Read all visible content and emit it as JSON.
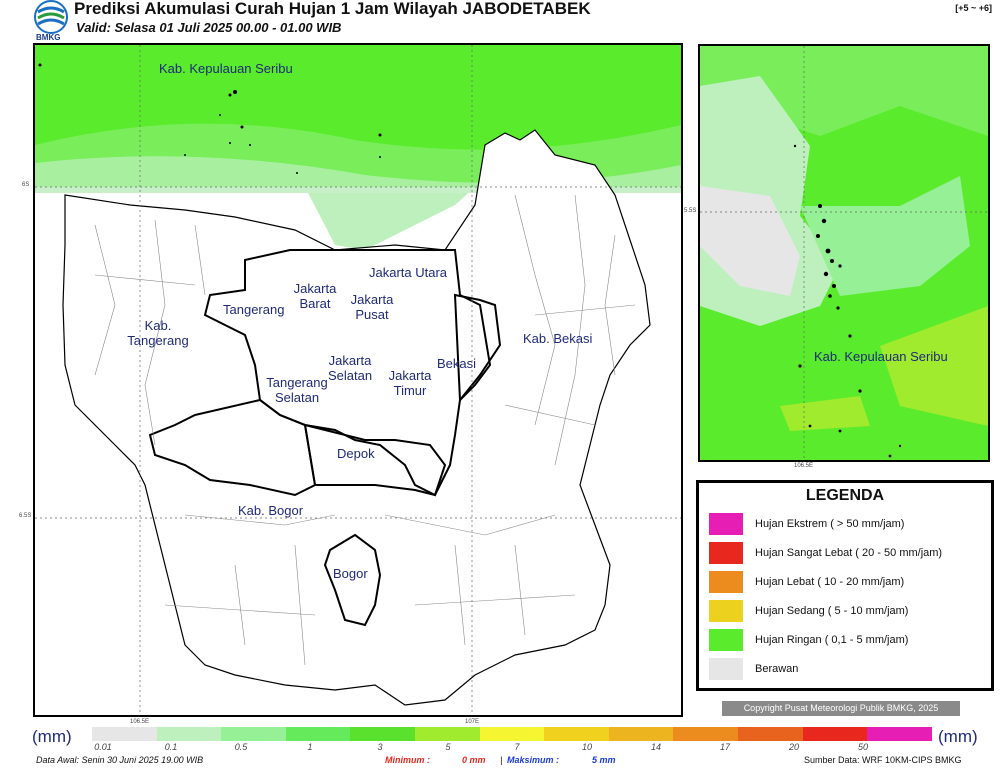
{
  "header": {
    "title": "Prediksi Akumulasi Curah Hujan 1 Jam Wilayah JABODETABEK",
    "valid": "Valid: Selasa 01 Juli 2025 00.00 - 01.00 WIB",
    "forecast_range": "[+5 ~ +6]",
    "logo_text": "BMKG"
  },
  "map": {
    "regions": [
      "Kab. Kepulauan Seribu",
      "Jakarta Utara",
      "Jakarta Barat",
      "Jakarta Pusat",
      "Tangerang",
      "Kab. Tangerang",
      "Kab. Bekasi",
      "Jakarta Selatan",
      "Jakarta Timur",
      "Bekasi",
      "Tangerang Selatan",
      "Depok",
      "Kab. Bogor",
      "Bogor"
    ],
    "lat_labels": [
      "6S",
      "6.5S"
    ],
    "lon_labels": [
      "106.5E",
      "107E"
    ],
    "inset_region": "Kab. Kepulauan Seribu",
    "inset_lat": "5.5S",
    "inset_lon": "106.5E"
  },
  "legend": {
    "title": "LEGENDA",
    "items": [
      {
        "label": "Hujan Ekstrem ( > 50 mm/jam)",
        "color": "#e61eb4"
      },
      {
        "label": "Hujan Sangat Lebat ( 20 - 50 mm/jam)",
        "color": "#e8281e"
      },
      {
        "label": "Hujan Lebat ( 10 - 20 mm/jam)",
        "color": "#ec8c1e"
      },
      {
        "label": "Hujan Sedang ( 5 - 10 mm/jam)",
        "color": "#ecd21e"
      },
      {
        "label": "Hujan Ringan ( 0,1 - 5 mm/jam)",
        "color": "#5aeb2d"
      },
      {
        "label": "Berawan",
        "color": "#e6e6e6"
      }
    ]
  },
  "copyright": "Copyright Pusat Meteorologi Publik BMKG, 2025",
  "scale": {
    "unit": "(mm)",
    "ticks": [
      "0.01",
      "0.1",
      "0.5",
      "1",
      "3",
      "5",
      "7",
      "10",
      "14",
      "17",
      "20",
      "50"
    ],
    "colors": [
      "#e6e6e6",
      "#bef0be",
      "#96f096",
      "#64ea5a",
      "#5ae12d",
      "#a0eb2d",
      "#f5f532",
      "#f0d21e",
      "#ecb41e",
      "#ec8c1e",
      "#e8641e",
      "#e8281e",
      "#e61eb4"
    ]
  },
  "footer": {
    "data_awal": "Data Awal: Senin 30 Juni 2025 19.00 WIB",
    "minimum_label": "Minimum :",
    "minimum_value": "0 mm",
    "separator": "|",
    "maximum_label": "Maksimum :",
    "maximum_value": "5 mm",
    "source": "Sumber Data: WRF 10KM-CIPS BMKG"
  }
}
